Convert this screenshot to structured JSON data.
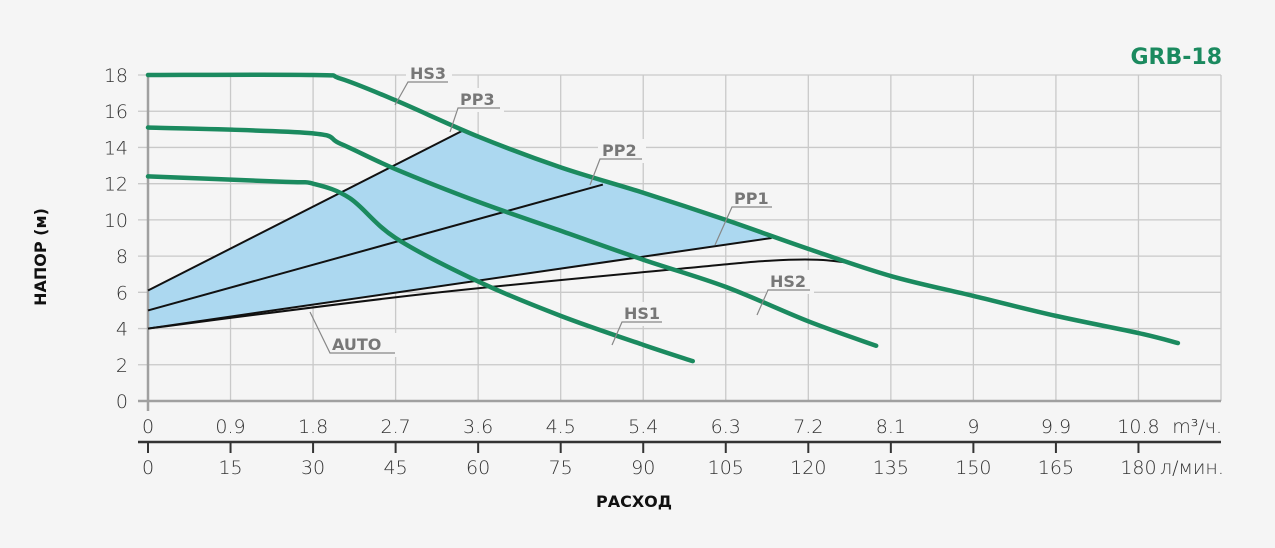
{
  "chart_data": {
    "type": "line",
    "title": "GRB-18",
    "ylabel": "НАПОР (м)",
    "xlabel": "РАСХОД",
    "ylim": [
      0,
      18
    ],
    "xlim": [
      0,
      11.7
    ],
    "y_ticks": [
      0,
      2,
      4,
      6,
      8,
      10,
      12,
      14,
      16,
      18
    ],
    "x_ticks_m3h": [
      "0",
      "0.9",
      "1.8",
      "2.7",
      "3.6",
      "4.5",
      "5.4",
      "6.3",
      "7.2",
      "8.1",
      "9",
      "9.9",
      "10.8"
    ],
    "x_unit_m3h": "m³/ч.",
    "x_ticks_lmin": [
      "0",
      "15",
      "30",
      "45",
      "60",
      "75",
      "90",
      "105",
      "120",
      "135",
      "150",
      "165",
      "180"
    ],
    "x_unit_lmin": "л/мин.",
    "grid": true,
    "colors": {
      "speed_curve": "#1b8a5f",
      "control_line": "#111111",
      "region_fill": "#acd8f0",
      "brand": "#1b8a5f"
    },
    "series": [
      {
        "name": "HS3",
        "kind": "speed",
        "points": [
          [
            0,
            18
          ],
          [
            1.8,
            18
          ],
          [
            2.1,
            17.8
          ],
          [
            2.7,
            16.6
          ],
          [
            3.6,
            14.6
          ],
          [
            4.5,
            12.9
          ],
          [
            5.4,
            11.5
          ],
          [
            6.3,
            10.0
          ],
          [
            7.2,
            8.4
          ],
          [
            8.1,
            6.9
          ],
          [
            9,
            5.8
          ],
          [
            9.9,
            4.7
          ],
          [
            10.8,
            3.75
          ],
          [
            11.23,
            3.2
          ]
        ]
      },
      {
        "name": "HS2",
        "kind": "speed",
        "points": [
          [
            0,
            15.1
          ],
          [
            1.75,
            14.8
          ],
          [
            2.1,
            14.2
          ],
          [
            2.7,
            12.8
          ],
          [
            3.6,
            11.0
          ],
          [
            4.5,
            9.4
          ],
          [
            5.4,
            7.8
          ],
          [
            6.3,
            6.3
          ],
          [
            7.2,
            4.4
          ],
          [
            7.94,
            3.05
          ]
        ]
      },
      {
        "name": "HS1",
        "kind": "speed",
        "points": [
          [
            0,
            12.4
          ],
          [
            1.5,
            12.1
          ],
          [
            1.8,
            12.0
          ],
          [
            2.2,
            11.2
          ],
          [
            2.7,
            9.0
          ],
          [
            3.6,
            6.6
          ],
          [
            4.5,
            4.7
          ],
          [
            5.4,
            3.1
          ],
          [
            5.94,
            2.2
          ]
        ]
      },
      {
        "name": "PP3",
        "kind": "control",
        "points": [
          [
            0,
            6.1
          ],
          [
            3.42,
            14.9
          ]
        ]
      },
      {
        "name": "PP2",
        "kind": "control",
        "points": [
          [
            0,
            5.0
          ],
          [
            4.96,
            11.95
          ]
        ]
      },
      {
        "name": "PP1",
        "kind": "control",
        "points": [
          [
            0,
            4.0
          ],
          [
            6.8,
            9.0
          ]
        ]
      },
      {
        "name": "AUTO",
        "kind": "control",
        "points": [
          [
            0,
            4.0
          ],
          [
            3,
            5.9
          ],
          [
            6,
            7.4
          ],
          [
            6.8,
            7.75
          ],
          [
            7.3,
            7.8
          ],
          [
            7.7,
            7.6
          ]
        ]
      }
    ],
    "shaded_region": "between PP3, HS3 and PP1"
  }
}
